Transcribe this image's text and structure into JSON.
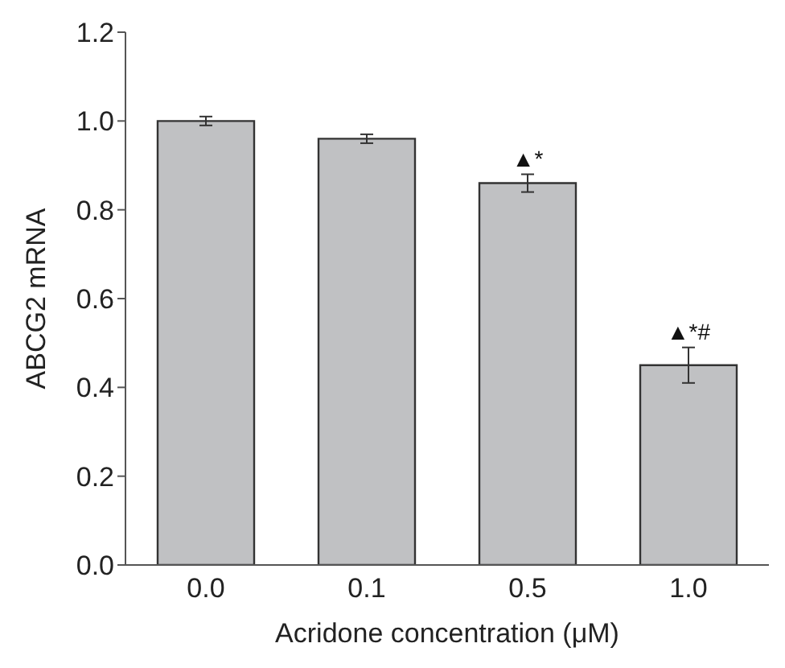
{
  "chart_data": {
    "type": "bar",
    "xlabel": "Acridone concentration (μM)",
    "ylabel": "ABCG2 mRNA",
    "categories": [
      "0.0",
      "0.1",
      "0.5",
      "1.0"
    ],
    "values": [
      1.0,
      0.96,
      0.86,
      0.45
    ],
    "errors": [
      0.01,
      0.01,
      0.02,
      0.04
    ],
    "color": "#c0c1c3",
    "ylim": [
      0,
      1.2
    ],
    "yticks": [
      {
        "value": 0,
        "label": "0.0"
      },
      0.2,
      0.4,
      0.6,
      0.8,
      {
        "value": 1,
        "label": "1.0"
      },
      1.2
    ],
    "annotations": [
      {
        "text": "▲*",
        "x": "0.5",
        "y": 0.88
      },
      {
        "text": "▲*#",
        "x": "1.0",
        "y": 0.49
      }
    ],
    "grid": false,
    "legend": false
  }
}
